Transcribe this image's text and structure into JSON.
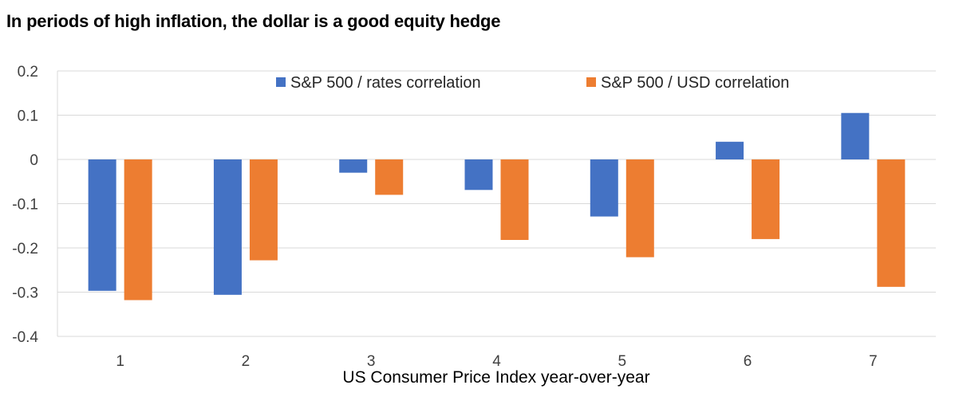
{
  "chart_data": {
    "type": "bar",
    "title": "In periods of high inflation, the dollar is a good equity hedge",
    "xlabel": "US Consumer Price Index year-over-year",
    "ylabel": "",
    "categories": [
      "1",
      "2",
      "3",
      "4",
      "5",
      "6",
      "7"
    ],
    "ylim": [
      -0.4,
      0.2
    ],
    "yticks": [
      "0.2",
      "0.1",
      "0",
      "-0.1",
      "-0.2",
      "-0.3",
      "-0.4"
    ],
    "ytick_values": [
      0.2,
      0.1,
      0,
      -0.1,
      -0.2,
      -0.3,
      -0.4
    ],
    "grid": true,
    "legend": "top",
    "series": [
      {
        "name": "S&P 500 / rates correlation",
        "color": "#4472C4",
        "values": [
          -0.297,
          -0.306,
          -0.03,
          -0.069,
          -0.129,
          0.04,
          0.105
        ]
      },
      {
        "name": "S&P 500 / USD correlation",
        "color": "#ED7D31",
        "values": [
          -0.318,
          -0.228,
          -0.08,
          -0.182,
          -0.221,
          -0.18,
          -0.288
        ]
      }
    ]
  }
}
